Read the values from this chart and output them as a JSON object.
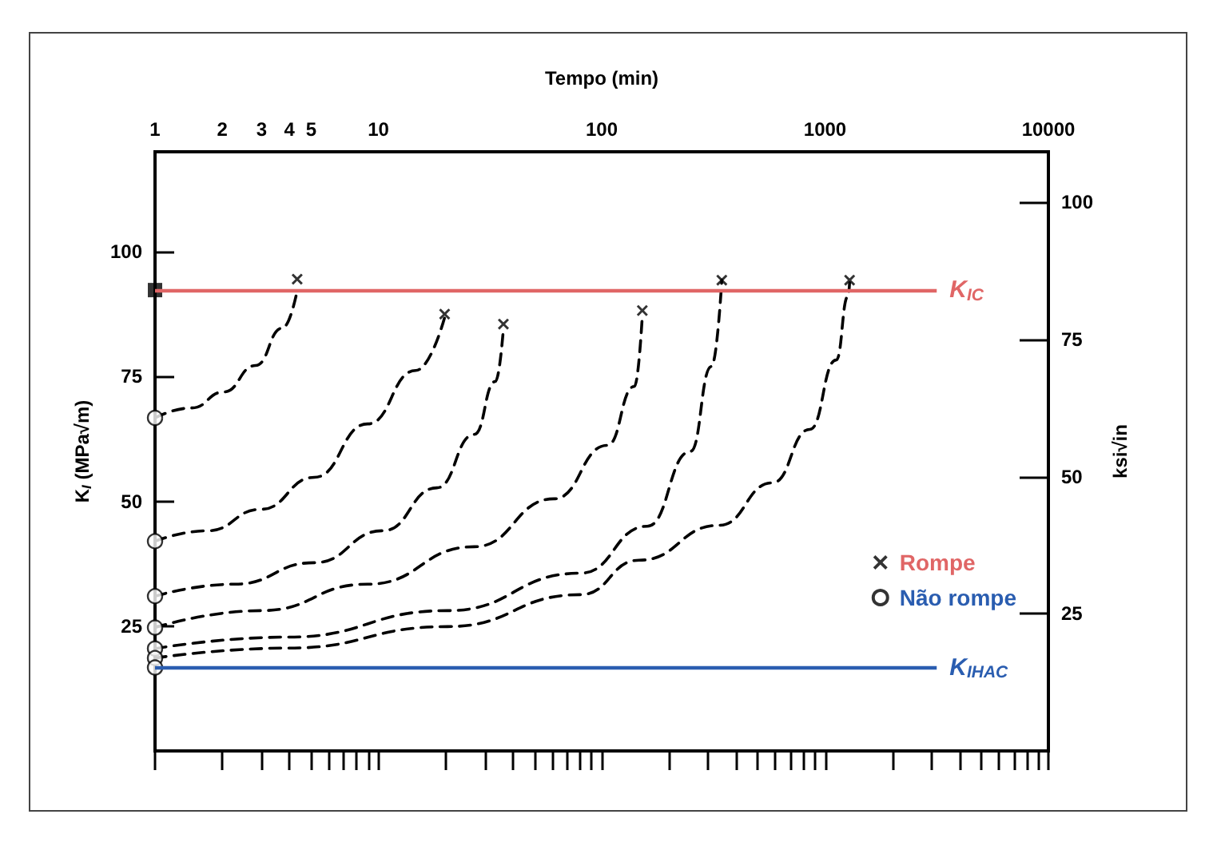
{
  "chart_data": {
    "type": "line",
    "xlabel": "Tempo (min)",
    "ylabel": "K$_{I}$ (MPa√m)",
    "y2label": "ksi√in",
    "log": "x",
    "grid": false,
    "legend": "right",
    "line_style": "dashed",
    "marker": "none",
    "xlim": [
      1,
      10000
    ],
    "xticks": [
      1,
      2,
      3,
      4,
      5,
      {
        "value": 6,
        "label": null
      },
      {
        "value": 7,
        "label": null
      },
      {
        "value": 8,
        "label": null
      },
      {
        "value": 9,
        "label": null
      },
      10,
      {
        "value": 20,
        "label": null
      },
      {
        "value": 30,
        "label": null
      },
      {
        "value": 40,
        "label": null
      },
      {
        "value": 50,
        "label": null
      },
      {
        "value": 60,
        "label": null
      },
      {
        "value": 70,
        "label": null
      },
      {
        "value": 80,
        "label": null
      },
      {
        "value": 90,
        "label": null
      },
      100,
      {
        "value": 200,
        "label": null
      },
      {
        "value": 300,
        "label": null
      },
      {
        "value": 400,
        "label": null
      },
      {
        "value": 500,
        "label": null
      },
      {
        "value": 600,
        "label": null
      },
      {
        "value": 700,
        "label": null
      },
      {
        "value": 800,
        "label": null
      },
      {
        "value": 900,
        "label": null
      },
      1000,
      {
        "value": 2000,
        "label": null
      },
      {
        "value": 3000,
        "label": null
      },
      {
        "value": 4000,
        "label": null
      },
      {
        "value": 5000,
        "label": null
      },
      {
        "value": 6000,
        "label": null
      },
      {
        "value": 7000,
        "label": null
      },
      {
        "value": 8000,
        "label": null
      },
      {
        "value": 9000,
        "label": null
      },
      10000
    ],
    "ylim": [
      0,
      120
    ],
    "yticks": [
      25,
      50,
      75,
      100
    ],
    "y2lim": [
      0,
      109.2
    ],
    "y2ticks": [
      25,
      50,
      75,
      100
    ],
    "ref_lines": [
      {
        "axis": "y",
        "value": 92.3,
        "label": "K$_{IC}$",
        "color": "#e06666"
      },
      {
        "axis": "y",
        "value": 16.7,
        "label": "K$_{IHAC}$",
        "color": "#2a5db0"
      }
    ],
    "series": [
      {
        "color": "#000000",
        "x": [
          1,
          1.46,
          2.03,
          2.82,
          3.72,
          4.33
        ],
        "values": [
          66.7,
          68.7,
          71.9,
          77.2,
          84.7,
          92.2
        ]
      },
      {
        "color": "#000000",
        "x": [
          1,
          1.72,
          2.98,
          5.17,
          8.95,
          14.7,
          19.8
        ],
        "values": [
          42,
          44.1,
          48.4,
          54.8,
          65.5,
          76.2,
          86.8
        ]
      },
      {
        "color": "#000000",
        "x": [
          1,
          2.27,
          5.17,
          10.5,
          18.3,
          26.9,
          33.4,
          36.3
        ],
        "values": [
          31,
          33.4,
          37.7,
          44.1,
          52.7,
          63.4,
          74,
          84.6
        ]
      },
      {
        "color": "#000000",
        "x": [
          1,
          2.98,
          8.95,
          26.9,
          61.2,
          106,
          140,
          152
        ],
        "values": [
          24.7,
          28.1,
          33.4,
          40.9,
          50.5,
          61.2,
          73,
          87.2
        ]
      },
      {
        "color": "#000000",
        "x": [
          1,
          3.93,
          20.4,
          80.5,
          160,
          250,
          310,
          345
        ],
        "values": [
          20.5,
          22.8,
          28.1,
          35.6,
          45,
          60,
          77,
          94.3
        ]
      },
      {
        "color": "#000000",
        "x": [
          1,
          3.93,
          20.4,
          80.5,
          147,
          336,
          581,
          855,
          1122,
          1268,
          1288
        ],
        "values": [
          18.6,
          20.6,
          24.9,
          31.3,
          38.2,
          45.2,
          53.7,
          64.4,
          78.3,
          91.1,
          93.8
        ]
      },
      {
        "type": "scatter",
        "marker": "square",
        "color": "#000000",
        "x": [
          1
        ],
        "values": [
          92.3
        ]
      },
      {
        "type": "scatter",
        "name": "Rompe",
        "marker": "cross",
        "color": "#000000",
        "x": [
          4.33,
          19.8,
          36.3,
          152,
          345,
          1288
        ],
        "values": [
          94.5,
          87.5,
          85.5,
          88.2,
          94.3,
          94.3
        ]
      },
      {
        "type": "scatter",
        "name": "Não rompe",
        "marker": "circle",
        "color": "#000000",
        "x": [
          1,
          1,
          1,
          1,
          1,
          1,
          1
        ],
        "values": [
          66.7,
          42,
          31,
          24.7,
          20.5,
          18.6,
          16.7
        ]
      }
    ]
  }
}
